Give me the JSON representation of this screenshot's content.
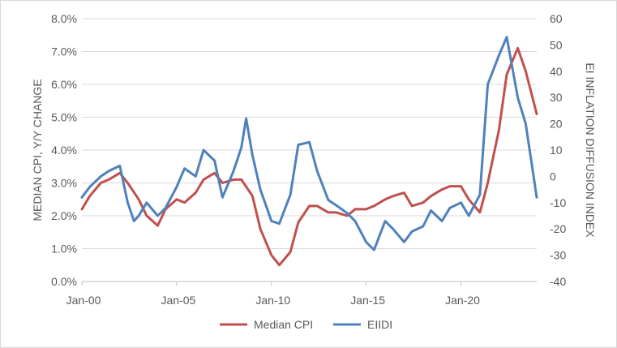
{
  "chart_data": {
    "type": "line",
    "ylabel": "MEDIAN CPI, Y/Y CHANGE",
    "y2label": "EI INFLATION DIFFUSION INDEX",
    "ylim": [
      0,
      8
    ],
    "y2lim": [
      -40,
      60
    ],
    "xlim": [
      "2000-01",
      "2024-01"
    ],
    "grid": true,
    "legend": "bottom",
    "x_ticks": [
      "Jan-00",
      "Jan-05",
      "Jan-10",
      "Jan-15",
      "Jan-20"
    ],
    "y_ticks": [
      "0.0%",
      "1.0%",
      "2.0%",
      "3.0%",
      "4.0%",
      "5.0%",
      "6.0%",
      "7.0%",
      "8.0%"
    ],
    "y2_ticks": [
      "-40",
      "-30",
      "-20",
      "-10",
      "0",
      "10",
      "20",
      "30",
      "40",
      "50",
      "60"
    ],
    "series": [
      {
        "name": "Median CPI",
        "axis": "left",
        "color": "#c0504d",
        "points": [
          [
            "2000-01",
            2.2
          ],
          [
            "2000-06",
            2.6
          ],
          [
            "2001-01",
            3.0
          ],
          [
            "2001-06",
            3.1
          ],
          [
            "2002-01",
            3.3
          ],
          [
            "2002-06",
            3.0
          ],
          [
            "2003-01",
            2.5
          ],
          [
            "2003-06",
            2.0
          ],
          [
            "2004-01",
            1.7
          ],
          [
            "2004-06",
            2.2
          ],
          [
            "2005-01",
            2.5
          ],
          [
            "2005-06",
            2.4
          ],
          [
            "2006-01",
            2.7
          ],
          [
            "2006-06",
            3.1
          ],
          [
            "2007-01",
            3.3
          ],
          [
            "2007-06",
            3.0
          ],
          [
            "2008-01",
            3.1
          ],
          [
            "2008-06",
            3.1
          ],
          [
            "2009-01",
            2.6
          ],
          [
            "2009-06",
            1.6
          ],
          [
            "2010-01",
            0.8
          ],
          [
            "2010-06",
            0.5
          ],
          [
            "2011-01",
            0.9
          ],
          [
            "2011-06",
            1.8
          ],
          [
            "2012-01",
            2.3
          ],
          [
            "2012-06",
            2.3
          ],
          [
            "2013-01",
            2.1
          ],
          [
            "2013-06",
            2.1
          ],
          [
            "2014-01",
            2.0
          ],
          [
            "2014-06",
            2.2
          ],
          [
            "2015-01",
            2.2
          ],
          [
            "2015-06",
            2.3
          ],
          [
            "2016-01",
            2.5
          ],
          [
            "2016-06",
            2.6
          ],
          [
            "2017-01",
            2.7
          ],
          [
            "2017-06",
            2.3
          ],
          [
            "2018-01",
            2.4
          ],
          [
            "2018-06",
            2.6
          ],
          [
            "2019-01",
            2.8
          ],
          [
            "2019-06",
            2.9
          ],
          [
            "2020-01",
            2.9
          ],
          [
            "2020-06",
            2.5
          ],
          [
            "2021-01",
            2.1
          ],
          [
            "2021-06",
            3.0
          ],
          [
            "2022-01",
            4.6
          ],
          [
            "2022-06",
            6.3
          ],
          [
            "2023-01",
            7.1
          ],
          [
            "2023-06",
            6.4
          ],
          [
            "2024-01",
            5.1
          ]
        ]
      },
      {
        "name": "EIIDI",
        "axis": "right",
        "color": "#4f81bd",
        "points": [
          [
            "2000-01",
            -8
          ],
          [
            "2000-06",
            -4
          ],
          [
            "2001-01",
            0
          ],
          [
            "2001-06",
            2
          ],
          [
            "2002-01",
            4
          ],
          [
            "2002-06",
            -10
          ],
          [
            "2002-10",
            -17
          ],
          [
            "2003-01",
            -15
          ],
          [
            "2003-06",
            -10
          ],
          [
            "2004-01",
            -15
          ],
          [
            "2004-06",
            -12
          ],
          [
            "2005-01",
            -4
          ],
          [
            "2005-06",
            3
          ],
          [
            "2006-01",
            0
          ],
          [
            "2006-06",
            10
          ],
          [
            "2007-01",
            6
          ],
          [
            "2007-06",
            -8
          ],
          [
            "2008-01",
            2
          ],
          [
            "2008-06",
            11
          ],
          [
            "2008-09",
            22
          ],
          [
            "2009-01",
            8
          ],
          [
            "2009-06",
            -5
          ],
          [
            "2010-01",
            -17
          ],
          [
            "2010-06",
            -18
          ],
          [
            "2011-01",
            -7
          ],
          [
            "2011-06",
            12
          ],
          [
            "2012-01",
            13
          ],
          [
            "2012-06",
            2
          ],
          [
            "2013-01",
            -9
          ],
          [
            "2013-06",
            -11
          ],
          [
            "2014-01",
            -14
          ],
          [
            "2014-06",
            -17
          ],
          [
            "2015-01",
            -25
          ],
          [
            "2015-06",
            -28
          ],
          [
            "2016-01",
            -17
          ],
          [
            "2016-06",
            -20
          ],
          [
            "2017-01",
            -25
          ],
          [
            "2017-06",
            -21
          ],
          [
            "2018-01",
            -19
          ],
          [
            "2018-06",
            -13
          ],
          [
            "2019-01",
            -17
          ],
          [
            "2019-06",
            -12
          ],
          [
            "2020-01",
            -10
          ],
          [
            "2020-06",
            -15
          ],
          [
            "2021-01",
            -7
          ],
          [
            "2021-06",
            35
          ],
          [
            "2022-01",
            46
          ],
          [
            "2022-06",
            53
          ],
          [
            "2023-01",
            30
          ],
          [
            "2023-06",
            20
          ],
          [
            "2024-01",
            -8
          ]
        ]
      }
    ]
  }
}
